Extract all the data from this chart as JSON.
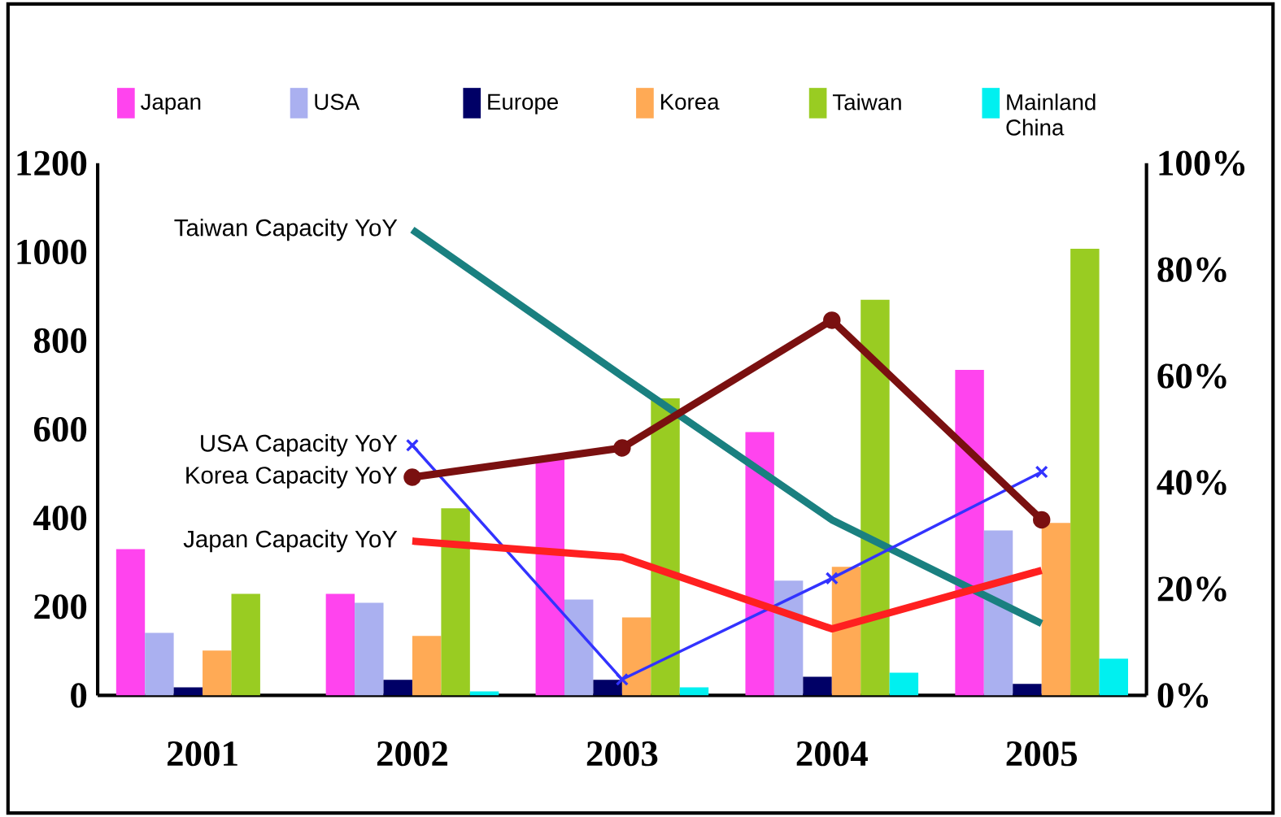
{
  "chart_data": {
    "type": "bar",
    "categories": [
      "2001",
      "2002",
      "2003",
      "2004",
      "2005"
    ],
    "ylim": [
      0,
      1200
    ],
    "yticks": [
      0,
      200,
      400,
      600,
      800,
      1000,
      1200
    ],
    "y2lim": [
      0,
      100
    ],
    "y2ticks": [
      {
        "value": 0,
        "label": "0%"
      },
      {
        "value": 20,
        "label": "20%"
      },
      {
        "value": 40,
        "label": "40%"
      },
      {
        "value": 60,
        "label": "60%"
      },
      {
        "value": 80,
        "label": "80%"
      },
      {
        "value": 100,
        "label": "100%"
      }
    ],
    "legend": "top",
    "grid": false,
    "series": [
      {
        "name": "Japan",
        "color": "#ff44ee",
        "values": [
          330,
          229,
          532,
          594,
          734
        ]
      },
      {
        "name": "USA",
        "color": "#aab0f0",
        "values": [
          141,
          209,
          216,
          259,
          372
        ]
      },
      {
        "name": "Europe",
        "color": "#000066",
        "values": [
          18,
          35,
          35,
          42,
          26
        ]
      },
      {
        "name": "Korea",
        "color": "#ffaa55",
        "values": [
          101,
          134,
          176,
          290,
          389
        ]
      },
      {
        "name": "Taiwan",
        "color": "#99cc22",
        "values": [
          229,
          422,
          670,
          892,
          1007
        ]
      },
      {
        "name": "Mainland China",
        "color": "#00f0f0",
        "values": [
          0,
          9,
          18,
          51,
          83
        ]
      },
      {
        "name": "Taiwan Capacity YoY",
        "type": "line",
        "axis": "y2",
        "color": "#1a8080",
        "marker": "none",
        "values": [
          null,
          87.5,
          60,
          33,
          13.5
        ]
      },
      {
        "name": "USA Capacity YoY",
        "type": "line",
        "axis": "y2",
        "color": "#3333ff",
        "marker": "cross",
        "values": [
          null,
          47,
          3,
          22,
          42
        ]
      },
      {
        "name": "Korea Capacity YoY",
        "type": "line",
        "axis": "y2",
        "color": "#7a1010",
        "marker": "circle",
        "values": [
          null,
          41,
          46.5,
          70.5,
          33
        ]
      },
      {
        "name": "Japan Capacity YoY",
        "type": "line",
        "axis": "y2",
        "color": "#ff2020",
        "marker": "none",
        "values": [
          null,
          29,
          26,
          12.5,
          23.5
        ]
      }
    ]
  }
}
